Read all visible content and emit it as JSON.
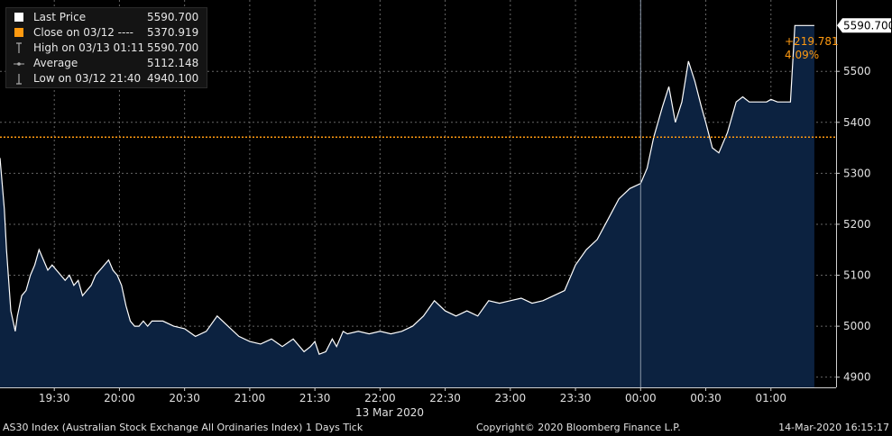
{
  "chart_data": {
    "type": "area",
    "title": "AS30 Index (Australian Stock Exchange All Ordinaries Index) 1 Days  Tick",
    "date_label": "13 Mar 2020",
    "x_ticks": [
      "19:30",
      "20:00",
      "20:30",
      "21:00",
      "21:30",
      "22:00",
      "22:30",
      "23:00",
      "23:30",
      "00:00",
      "00:30",
      "01:00"
    ],
    "y_ticks": [
      4900,
      5000,
      5100,
      5200,
      5300,
      5400,
      5500
    ],
    "ylim": [
      4880,
      5640
    ],
    "xlim": [
      "19:05",
      "01:30"
    ],
    "grid": true,
    "series": [
      {
        "name": "Last Price",
        "color": "#ffffff",
        "fill": "#0c2240",
        "x": [
          "19:05",
          "19:07",
          "19:08",
          "19:10",
          "19:12",
          "19:13",
          "19:15",
          "19:17",
          "19:19",
          "19:21",
          "19:23",
          "19:25",
          "19:27",
          "19:29",
          "19:31",
          "19:33",
          "19:35",
          "19:37",
          "19:39",
          "19:41",
          "19:43",
          "19:45",
          "19:47",
          "19:49",
          "19:51",
          "19:53",
          "19:55",
          "19:57",
          "19:59",
          "20:01",
          "20:03",
          "20:05",
          "20:07",
          "20:09",
          "20:11",
          "20:13",
          "20:15",
          "20:20",
          "20:25",
          "20:30",
          "20:35",
          "20:40",
          "20:45",
          "20:50",
          "20:55",
          "21:00",
          "21:05",
          "21:10",
          "21:15",
          "21:20",
          "21:25",
          "21:28",
          "21:30",
          "21:32",
          "21:35",
          "21:38",
          "21:40",
          "21:43",
          "21:45",
          "21:50",
          "21:55",
          "22:00",
          "22:05",
          "22:10",
          "22:15",
          "22:20",
          "22:25",
          "22:30",
          "22:35",
          "22:40",
          "22:45",
          "22:50",
          "22:55",
          "23:00",
          "23:05",
          "23:10",
          "23:15",
          "23:20",
          "23:25",
          "23:30",
          "23:35",
          "23:40",
          "23:45",
          "23:50",
          "23:55",
          "00:00",
          "00:03",
          "00:06",
          "00:10",
          "00:13",
          "00:16",
          "00:19",
          "00:22",
          "00:25",
          "00:28",
          "00:30",
          "00:33",
          "00:36",
          "00:40",
          "00:44",
          "00:47",
          "00:50",
          "00:53",
          "00:56",
          "00:58",
          "01:00",
          "01:03",
          "01:06",
          "01:08",
          "01:09",
          "01:11",
          "01:20"
        ],
        "values": [
          5330,
          5230,
          5150,
          5030,
          4990,
          5020,
          5060,
          5070,
          5100,
          5120,
          5150,
          5130,
          5110,
          5120,
          5110,
          5100,
          5090,
          5100,
          5080,
          5090,
          5060,
          5070,
          5080,
          5100,
          5110,
          5120,
          5130,
          5110,
          5100,
          5080,
          5040,
          5010,
          5000,
          5000,
          5010,
          5000,
          5010,
          5010,
          5000,
          4995,
          4980,
          4990,
          5020,
          5000,
          4980,
          4970,
          4965,
          4975,
          4960,
          4975,
          4950,
          4960,
          4970,
          4945,
          4950,
          4975,
          4960,
          4990,
          4985,
          4990,
          4985,
          4990,
          4985,
          4990,
          5000,
          5020,
          5050,
          5030,
          5020,
          5030,
          5020,
          5050,
          5045,
          5050,
          5055,
          5045,
          5050,
          5060,
          5070,
          5120,
          5150,
          5170,
          5210,
          5250,
          5270,
          5280,
          5310,
          5370,
          5430,
          5470,
          5400,
          5440,
          5520,
          5480,
          5430,
          5400,
          5350,
          5340,
          5380,
          5440,
          5450,
          5440,
          5440,
          5440,
          5440,
          5445,
          5440,
          5440,
          5440,
          5440,
          5590,
          5590
        ]
      }
    ],
    "reference_line": {
      "label": "Close on 03/12",
      "value": 5370.919,
      "color": "#ff9a10"
    },
    "last_value_label": "5590.700",
    "change_label": "+219.781",
    "change_pct_label": "4.09%",
    "vertical_marker_x": "00:00"
  },
  "legend": {
    "items": [
      {
        "label": "Last Price",
        "value": "5590.700"
      },
      {
        "label": "Close on 03/12 ----",
        "value": "5370.919"
      },
      {
        "label": "High on 03/13 01:11",
        "value": "5590.700"
      },
      {
        "label": "Average",
        "value": "5112.148"
      },
      {
        "label": "Low on 03/12 21:40",
        "value": "4940.100"
      }
    ]
  },
  "footer": {
    "security": "AS30 Index (Australian Stock Exchange All Ordinaries Index) 1 Days  Tick",
    "copyright": "Copyright© 2020 Bloomberg Finance L.P.",
    "timestamp": "14-Mar-2020 16:15:17"
  },
  "colors": {
    "accent": "#ff9a10",
    "area": "#0c2240",
    "line": "#ffffff",
    "grid": "#666666"
  }
}
